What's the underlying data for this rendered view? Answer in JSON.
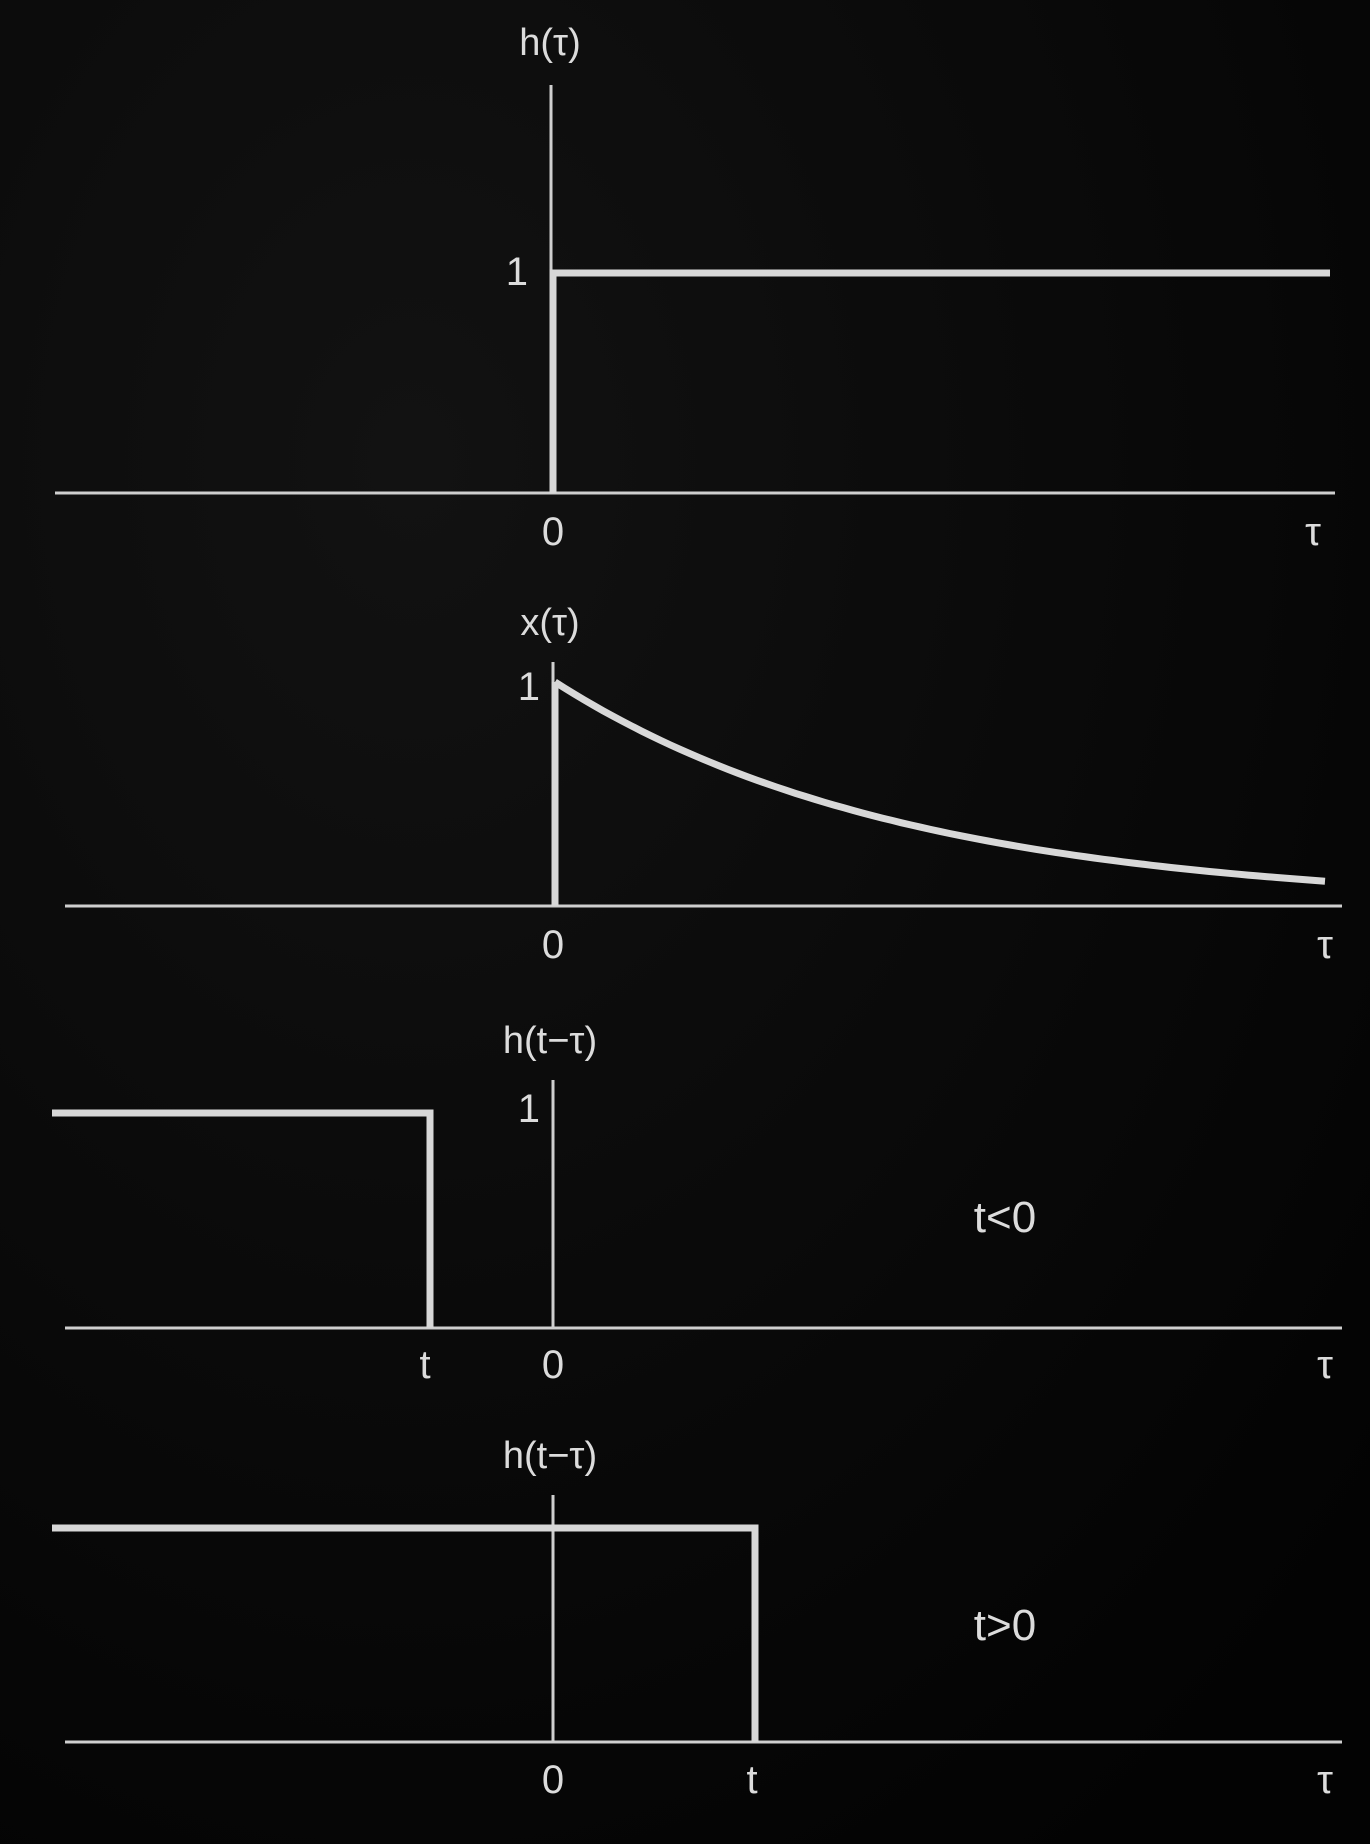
{
  "panels": [
    {
      "id": "h-of-tau",
      "title": "h(τ)",
      "tick_labels": {
        "y_one": "1",
        "x_zero": "0",
        "x_var": "τ"
      },
      "curve": "step-up-at-0"
    },
    {
      "id": "x-of-tau",
      "title": "x(τ)",
      "tick_labels": {
        "y_one": "1",
        "x_zero": "0",
        "x_var": "τ"
      },
      "curve": "decaying-exponential"
    },
    {
      "id": "h-t-minus-tau-negative",
      "title": "h(t−τ)",
      "tick_labels": {
        "y_one": "1",
        "x_t": "t",
        "x_zero": "0",
        "x_var": "τ"
      },
      "condition": "t<0",
      "curve": "flipped-step-ending-at-t",
      "t_sign": "negative"
    },
    {
      "id": "h-t-minus-tau-positive",
      "title": "h(t−τ)",
      "tick_labels": {
        "x_zero": "0",
        "x_t": "t",
        "x_var": "τ"
      },
      "condition": "t>0",
      "curve": "flipped-step-ending-at-t",
      "t_sign": "positive"
    }
  ],
  "colors": {
    "background": "#050505",
    "ink": "#d8d8d8"
  }
}
